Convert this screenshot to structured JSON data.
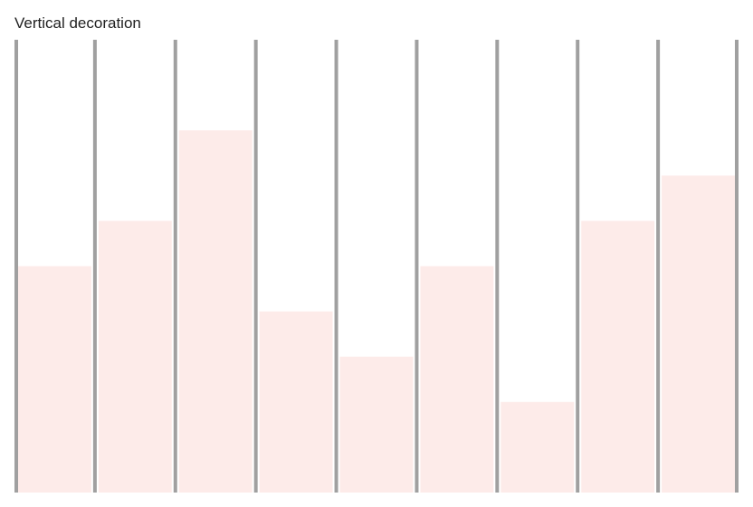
{
  "chart_data": {
    "type": "bar",
    "title": "Vertical decoration",
    "categories": [
      "",
      "",
      "",
      "",
      "",
      "",
      "",
      "",
      ""
    ],
    "values": [
      5,
      6,
      8,
      4,
      3,
      5,
      2,
      6,
      7
    ],
    "ylim": [
      0,
      10
    ],
    "xlabel": "",
    "ylabel": "",
    "grid": false,
    "legend": "none",
    "bar_color": "#fdebe9",
    "decoration_color": "#a0a0a0"
  }
}
